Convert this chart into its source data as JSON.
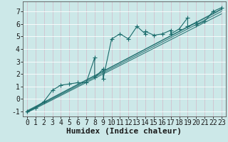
{
  "xlabel": "Humidex (Indice chaleur)",
  "background_color": "#cce8e8",
  "grid_color": "#b8d8d8",
  "line_color": "#1a6b6b",
  "xlim": [
    -0.5,
    23.5
  ],
  "ylim": [
    -1.4,
    7.8
  ],
  "xticks": [
    0,
    1,
    2,
    3,
    4,
    5,
    6,
    7,
    8,
    9,
    10,
    11,
    12,
    13,
    14,
    15,
    16,
    17,
    18,
    19,
    20,
    21,
    22,
    23
  ],
  "yticks": [
    -1,
    0,
    1,
    2,
    3,
    4,
    5,
    6,
    7
  ],
  "zigzag": [
    [
      0,
      -1.0
    ],
    [
      1,
      -0.7
    ],
    [
      2,
      -0.2
    ],
    [
      3,
      0.7
    ],
    [
      4,
      1.1
    ],
    [
      5,
      1.2
    ],
    [
      6,
      1.3
    ],
    [
      7,
      1.3
    ],
    [
      8,
      3.3
    ],
    [
      8,
      1.7
    ],
    [
      9,
      2.4
    ],
    [
      9,
      1.6
    ],
    [
      10,
      4.8
    ],
    [
      11,
      5.2
    ],
    [
      12,
      4.8
    ],
    [
      13,
      5.8
    ],
    [
      14,
      5.2
    ],
    [
      14,
      5.4
    ],
    [
      15,
      5.1
    ],
    [
      16,
      5.2
    ],
    [
      17,
      5.5
    ],
    [
      17,
      5.2
    ],
    [
      18,
      5.6
    ],
    [
      19,
      6.5
    ],
    [
      19,
      5.8
    ],
    [
      20,
      6.1
    ],
    [
      20,
      5.9
    ],
    [
      21,
      6.2
    ],
    [
      22,
      7.0
    ],
    [
      23,
      7.3
    ]
  ],
  "band_lines": [
    [
      [
        0,
        -1.0
      ],
      [
        23,
        7.2
      ]
    ],
    [
      [
        0,
        -1.05
      ],
      [
        23,
        7.0
      ]
    ],
    [
      [
        0,
        -1.1
      ],
      [
        23,
        6.8
      ]
    ],
    [
      [
        0,
        -0.95
      ],
      [
        23,
        7.15
      ]
    ]
  ],
  "font_family": "monospace",
  "xlabel_fontsize": 8,
  "tick_fontsize": 7
}
